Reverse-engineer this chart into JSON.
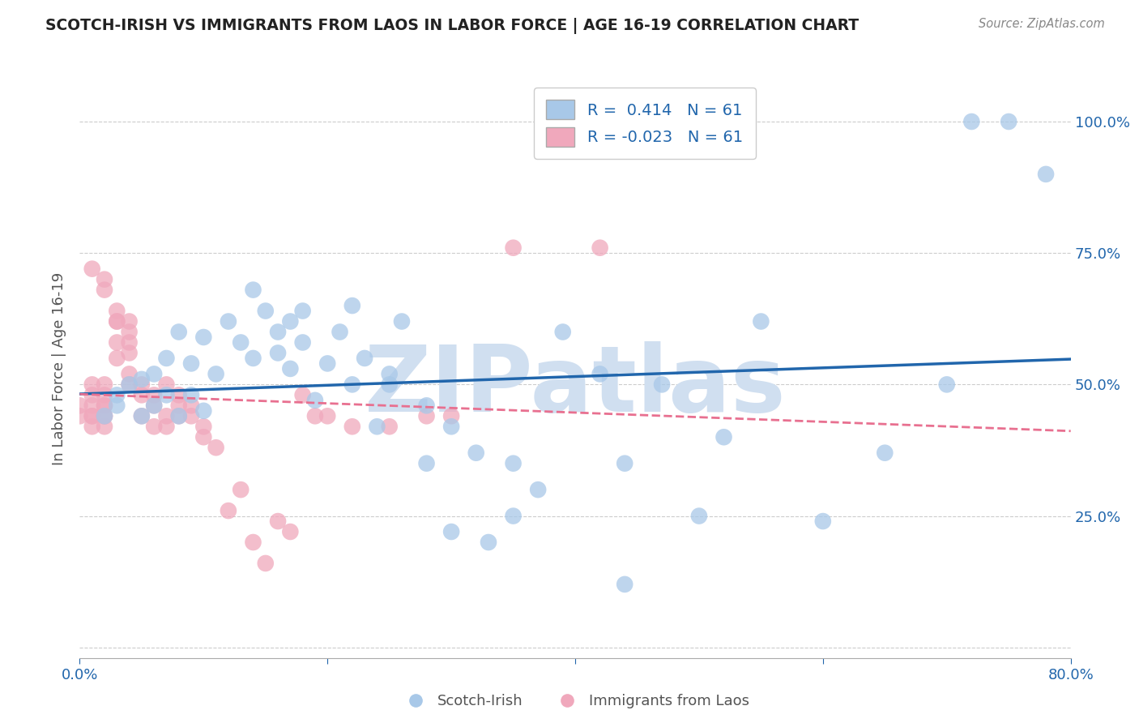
{
  "title": "SCOTCH-IRISH VS IMMIGRANTS FROM LAOS IN LABOR FORCE | AGE 16-19 CORRELATION CHART",
  "source": "Source: ZipAtlas.com",
  "ylabel": "In Labor Force | Age 16-19",
  "xlim": [
    0.0,
    0.8
  ],
  "ylim": [
    -0.02,
    1.08
  ],
  "legend_blue_r": "R =  0.414",
  "legend_blue_n": "N = 61",
  "legend_pink_r": "R = -0.023",
  "legend_pink_n": "N = 61",
  "blue_color": "#A8C8E8",
  "pink_color": "#F0A8BC",
  "blue_line_color": "#2166AC",
  "pink_line_color": "#E87090",
  "watermark": "ZIPatlas",
  "watermark_color": "#D0DFF0",
  "blue_scatter_x": [
    0.02,
    0.03,
    0.03,
    0.04,
    0.05,
    0.05,
    0.06,
    0.06,
    0.07,
    0.07,
    0.08,
    0.08,
    0.09,
    0.09,
    0.1,
    0.1,
    0.11,
    0.12,
    0.13,
    0.14,
    0.14,
    0.15,
    0.16,
    0.16,
    0.17,
    0.17,
    0.18,
    0.18,
    0.19,
    0.2,
    0.21,
    0.22,
    0.22,
    0.23,
    0.24,
    0.25,
    0.26,
    0.28,
    0.3,
    0.32,
    0.33,
    0.35,
    0.37,
    0.39,
    0.42,
    0.44,
    0.44,
    0.47,
    0.5,
    0.52,
    0.55,
    0.6,
    0.65,
    0.7,
    0.72,
    0.75,
    0.78,
    0.35,
    0.3,
    0.28,
    0.25
  ],
  "blue_scatter_y": [
    0.44,
    0.46,
    0.48,
    0.5,
    0.44,
    0.51,
    0.46,
    0.52,
    0.48,
    0.55,
    0.44,
    0.6,
    0.48,
    0.54,
    0.45,
    0.59,
    0.52,
    0.62,
    0.58,
    0.55,
    0.68,
    0.64,
    0.56,
    0.6,
    0.53,
    0.62,
    0.58,
    0.64,
    0.47,
    0.54,
    0.6,
    0.5,
    0.65,
    0.55,
    0.42,
    0.52,
    0.62,
    0.46,
    0.22,
    0.37,
    0.2,
    0.25,
    0.3,
    0.6,
    0.52,
    0.35,
    0.12,
    0.5,
    0.25,
    0.4,
    0.62,
    0.24,
    0.37,
    0.5,
    1.0,
    1.0,
    0.9,
    0.35,
    0.42,
    0.35,
    0.5
  ],
  "pink_scatter_x": [
    0.0,
    0.0,
    0.01,
    0.01,
    0.01,
    0.01,
    0.01,
    0.01,
    0.02,
    0.02,
    0.02,
    0.02,
    0.02,
    0.02,
    0.02,
    0.03,
    0.03,
    0.03,
    0.03,
    0.04,
    0.04,
    0.04,
    0.04,
    0.04,
    0.05,
    0.05,
    0.05,
    0.06,
    0.06,
    0.06,
    0.07,
    0.07,
    0.07,
    0.08,
    0.08,
    0.08,
    0.09,
    0.09,
    0.1,
    0.1,
    0.11,
    0.12,
    0.13,
    0.14,
    0.15,
    0.16,
    0.17,
    0.18,
    0.19,
    0.2,
    0.22,
    0.25,
    0.28,
    0.3,
    0.35,
    0.42,
    0.01,
    0.02,
    0.02,
    0.03,
    0.04
  ],
  "pink_scatter_y": [
    0.44,
    0.46,
    0.42,
    0.44,
    0.46,
    0.48,
    0.5,
    0.44,
    0.44,
    0.46,
    0.48,
    0.42,
    0.44,
    0.46,
    0.5,
    0.62,
    0.64,
    0.55,
    0.58,
    0.62,
    0.58,
    0.52,
    0.5,
    0.6,
    0.5,
    0.48,
    0.44,
    0.42,
    0.46,
    0.48,
    0.44,
    0.5,
    0.42,
    0.44,
    0.46,
    0.48,
    0.44,
    0.46,
    0.4,
    0.42,
    0.38,
    0.26,
    0.3,
    0.2,
    0.16,
    0.24,
    0.22,
    0.48,
    0.44,
    0.44,
    0.42,
    0.42,
    0.44,
    0.44,
    0.76,
    0.76,
    0.72,
    0.68,
    0.7,
    0.62,
    0.56
  ]
}
